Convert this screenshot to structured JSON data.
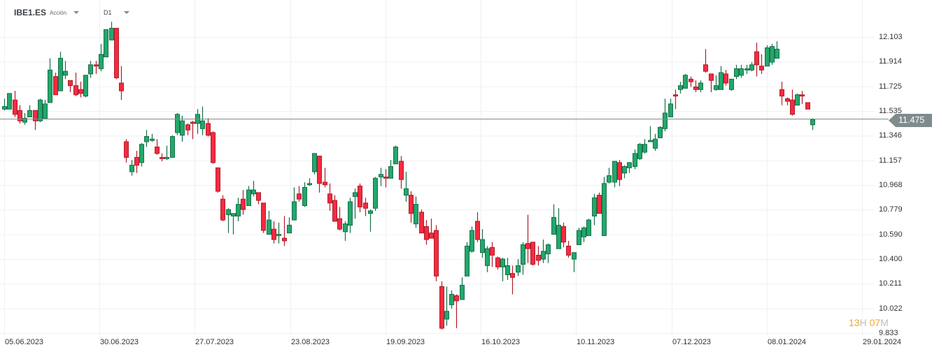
{
  "header": {
    "symbol": "IBE1.ES",
    "type": "Acción",
    "timeframe": "D1"
  },
  "timer": {
    "hours": "13",
    "h_unit": "H",
    "minutes": "07",
    "m_unit": "M"
  },
  "colors": {
    "up": "#22a86b",
    "up_border": "#16704a",
    "down": "#f42b40",
    "down_border": "#b01d2c",
    "price_line": "#7f8c8d",
    "timer": "#f5a623"
  },
  "chart_data": {
    "type": "candlestick",
    "title": "IBE1.ES",
    "current_price": "11.475",
    "current_price_value": 11.475,
    "ylim": [
      9.833,
      12.103
    ],
    "y_ticks": [
      "12.103",
      "11.914",
      "11.725",
      "11.535",
      "11.346",
      "11.157",
      "10.968",
      "10.779",
      "10.590",
      "10.400",
      "10.211",
      "10.022",
      "9.833"
    ],
    "x_ticks": [
      "05.06.2023",
      "30.06.2023",
      "27.07.2023",
      "23.08.2023",
      "19.09.2023",
      "16.10.2023",
      "10.11.2023",
      "07.12.2023",
      "08.01.2024",
      "29.01.2024"
    ],
    "x_tick_index": [
      0,
      19,
      38,
      57,
      76,
      95,
      114,
      133,
      152,
      171
    ],
    "grid": true,
    "ohlc": [
      [
        11.55,
        11.63,
        11.54,
        11.57
      ],
      [
        11.55,
        11.67,
        11.55,
        11.67
      ],
      [
        11.62,
        11.69,
        11.49,
        11.51
      ],
      [
        11.54,
        11.58,
        11.44,
        11.46
      ],
      [
        11.45,
        11.52,
        11.43,
        11.48
      ],
      [
        11.49,
        11.58,
        11.49,
        11.54
      ],
      [
        11.54,
        11.54,
        11.39,
        11.46
      ],
      [
        11.46,
        11.63,
        11.45,
        11.62
      ],
      [
        11.48,
        11.62,
        11.48,
        11.59
      ],
      [
        11.6,
        11.94,
        11.6,
        11.85
      ],
      [
        11.8,
        11.83,
        11.66,
        11.66
      ],
      [
        11.69,
        11.99,
        11.69,
        11.94
      ],
      [
        11.81,
        11.92,
        11.78,
        11.84
      ],
      [
        11.77,
        11.77,
        11.68,
        11.73
      ],
      [
        11.73,
        11.83,
        11.65,
        11.66
      ],
      [
        11.7,
        11.76,
        11.64,
        11.67
      ],
      [
        11.65,
        11.81,
        11.64,
        11.81
      ],
      [
        11.82,
        11.92,
        11.79,
        11.89
      ],
      [
        11.89,
        11.92,
        11.82,
        11.88
      ],
      [
        11.86,
        12.05,
        11.84,
        11.97
      ],
      [
        11.95,
        12.16,
        11.95,
        12.16
      ],
      [
        12.08,
        12.22,
        12.08,
        12.17
      ],
      [
        12.17,
        12.17,
        11.78,
        11.79
      ],
      [
        11.75,
        11.88,
        11.62,
        11.69
      ],
      [
        11.3,
        11.32,
        11.14,
        11.18
      ],
      [
        11.07,
        11.16,
        11.04,
        11.12
      ],
      [
        11.18,
        11.23,
        11.06,
        11.12
      ],
      [
        11.14,
        11.29,
        11.11,
        11.28
      ],
      [
        11.3,
        11.39,
        11.26,
        11.34
      ],
      [
        11.31,
        11.36,
        11.3,
        11.32
      ],
      [
        11.26,
        11.32,
        11.2,
        11.21
      ],
      [
        11.18,
        11.21,
        11.15,
        11.17
      ],
      [
        11.17,
        11.27,
        11.16,
        11.18
      ],
      [
        11.18,
        11.35,
        11.18,
        11.34
      ],
      [
        11.37,
        11.52,
        11.35,
        11.51
      ],
      [
        11.35,
        11.5,
        11.3,
        11.46
      ],
      [
        11.43,
        11.44,
        11.35,
        11.39
      ],
      [
        11.45,
        11.46,
        11.32,
        11.44
      ],
      [
        11.44,
        11.55,
        11.36,
        11.51
      ],
      [
        11.4,
        11.57,
        11.35,
        11.46
      ],
      [
        11.44,
        11.48,
        11.34,
        11.35
      ],
      [
        11.37,
        11.38,
        11.13,
        11.14
      ],
      [
        11.1,
        11.1,
        10.91,
        10.92
      ],
      [
        10.86,
        10.89,
        10.69,
        10.7
      ],
      [
        10.74,
        10.79,
        10.6,
        10.78
      ],
      [
        10.73,
        10.75,
        10.59,
        10.75
      ],
      [
        10.73,
        10.87,
        10.69,
        10.82
      ],
      [
        10.86,
        10.93,
        10.74,
        10.78
      ],
      [
        10.81,
        10.96,
        10.81,
        10.93
      ],
      [
        10.9,
        11.0,
        10.88,
        10.93
      ],
      [
        10.91,
        10.91,
        10.82,
        10.85
      ],
      [
        10.83,
        10.83,
        10.6,
        10.62
      ],
      [
        10.59,
        10.77,
        10.59,
        10.7
      ],
      [
        10.63,
        10.69,
        10.52,
        10.55
      ],
      [
        10.58,
        10.68,
        10.52,
        10.59
      ],
      [
        10.56,
        10.73,
        10.5,
        10.54
      ],
      [
        10.6,
        10.72,
        10.6,
        10.66
      ],
      [
        10.7,
        10.95,
        10.7,
        10.84
      ],
      [
        10.9,
        10.96,
        10.84,
        10.86
      ],
      [
        10.81,
        10.99,
        10.8,
        10.95
      ],
      [
        10.97,
        11.02,
        10.96,
        10.98
      ],
      [
        11.07,
        11.21,
        11.05,
        11.21
      ],
      [
        11.19,
        11.19,
        10.91,
        10.98
      ],
      [
        10.99,
        11.1,
        10.95,
        10.97
      ],
      [
        10.9,
        10.98,
        10.77,
        10.83
      ],
      [
        10.85,
        10.89,
        10.69,
        10.69
      ],
      [
        10.71,
        10.8,
        10.62,
        10.63
      ],
      [
        10.61,
        10.69,
        10.54,
        10.67
      ],
      [
        10.66,
        10.87,
        10.6,
        10.84
      ],
      [
        10.88,
        10.94,
        10.71,
        10.91
      ],
      [
        10.96,
        10.98,
        10.76,
        10.8
      ],
      [
        10.83,
        10.87,
        10.73,
        10.79
      ],
      [
        10.75,
        10.78,
        10.61,
        10.77
      ],
      [
        10.79,
        11.03,
        10.77,
        11.02
      ],
      [
        11.03,
        11.1,
        10.96,
        11.05
      ],
      [
        11.03,
        11.09,
        10.95,
        11.02
      ],
      [
        11.02,
        11.16,
        11.02,
        11.11
      ],
      [
        11.13,
        11.27,
        11.13,
        11.26
      ],
      [
        11.15,
        11.19,
        10.94,
        11.01
      ],
      [
        10.89,
        11.07,
        10.84,
        10.94
      ],
      [
        10.89,
        10.92,
        10.68,
        10.75
      ],
      [
        10.67,
        10.88,
        10.64,
        10.82
      ],
      [
        10.76,
        10.78,
        10.6,
        10.6
      ],
      [
        10.65,
        10.7,
        10.51,
        10.55
      ],
      [
        10.6,
        10.71,
        10.56,
        10.56
      ],
      [
        10.62,
        10.66,
        10.23,
        10.27
      ],
      [
        10.19,
        10.23,
        9.86,
        9.87
      ],
      [
        9.94,
        10.19,
        9.89,
        10.0
      ],
      [
        10.05,
        10.16,
        10.02,
        10.13
      ],
      [
        10.12,
        10.13,
        9.87,
        10.08
      ],
      [
        10.09,
        10.26,
        10.09,
        10.2
      ],
      [
        10.27,
        10.53,
        10.27,
        10.5
      ],
      [
        10.46,
        10.65,
        10.45,
        10.62
      ],
      [
        10.69,
        10.76,
        10.53,
        10.55
      ],
      [
        10.45,
        10.63,
        10.41,
        10.55
      ],
      [
        10.35,
        10.5,
        10.3,
        10.48
      ],
      [
        10.49,
        10.53,
        10.34,
        10.43
      ],
      [
        10.41,
        10.42,
        10.32,
        10.34
      ],
      [
        10.34,
        10.41,
        10.23,
        10.4
      ],
      [
        10.28,
        10.41,
        10.24,
        10.35
      ],
      [
        10.29,
        10.35,
        10.13,
        10.26
      ],
      [
        10.3,
        10.4,
        10.27,
        10.35
      ],
      [
        10.36,
        10.53,
        10.28,
        10.51
      ],
      [
        10.52,
        10.74,
        10.37,
        10.48
      ],
      [
        10.53,
        10.53,
        10.35,
        10.36
      ],
      [
        10.43,
        10.5,
        10.35,
        10.39
      ],
      [
        10.4,
        10.55,
        10.37,
        10.46
      ],
      [
        10.44,
        10.52,
        10.37,
        10.51
      ],
      [
        10.59,
        10.82,
        10.59,
        10.72
      ],
      [
        10.48,
        10.79,
        10.48,
        10.66
      ],
      [
        10.65,
        10.68,
        10.49,
        10.53
      ],
      [
        10.5,
        10.54,
        10.41,
        10.43
      ],
      [
        10.4,
        10.45,
        10.3,
        10.45
      ],
      [
        10.51,
        10.64,
        10.51,
        10.62
      ],
      [
        10.57,
        10.65,
        10.53,
        10.64
      ],
      [
        10.58,
        10.71,
        10.58,
        10.7
      ],
      [
        10.73,
        10.9,
        10.66,
        10.87
      ],
      [
        10.89,
        10.91,
        10.75,
        10.75
      ],
      [
        10.58,
        11.03,
        10.58,
        10.98
      ],
      [
        10.99,
        11.1,
        10.98,
        11.04
      ],
      [
        10.99,
        11.15,
        10.95,
        11.15
      ],
      [
        11.14,
        11.16,
        10.96,
        11.01
      ],
      [
        11.06,
        11.12,
        11.02,
        11.11
      ],
      [
        11.1,
        11.14,
        11.06,
        11.14
      ],
      [
        11.11,
        11.24,
        11.09,
        11.21
      ],
      [
        11.17,
        11.29,
        11.16,
        11.28
      ],
      [
        11.22,
        11.32,
        11.21,
        11.28
      ],
      [
        11.3,
        11.42,
        11.3,
        11.31
      ],
      [
        11.25,
        11.36,
        11.23,
        11.32
      ],
      [
        11.33,
        11.42,
        11.33,
        11.41
      ],
      [
        11.4,
        11.63,
        11.38,
        11.52
      ],
      [
        11.49,
        11.63,
        11.49,
        11.59
      ],
      [
        11.66,
        11.7,
        11.55,
        11.65
      ],
      [
        11.7,
        11.76,
        11.67,
        11.73
      ],
      [
        11.71,
        11.82,
        11.71,
        11.81
      ],
      [
        11.78,
        11.8,
        11.72,
        11.76
      ],
      [
        11.72,
        11.77,
        11.68,
        11.7
      ],
      [
        11.7,
        11.77,
        11.68,
        11.75
      ],
      [
        11.89,
        12.01,
        11.83,
        11.84
      ],
      [
        11.82,
        11.82,
        11.68,
        11.77
      ],
      [
        11.7,
        11.81,
        11.69,
        11.73
      ],
      [
        11.7,
        11.88,
        11.7,
        11.83
      ],
      [
        11.82,
        11.85,
        11.73,
        11.75
      ],
      [
        11.7,
        11.78,
        11.69,
        11.78
      ],
      [
        11.8,
        11.89,
        11.78,
        11.86
      ],
      [
        11.81,
        11.89,
        11.79,
        11.86
      ],
      [
        11.85,
        11.89,
        11.82,
        11.86
      ],
      [
        11.85,
        11.91,
        11.84,
        11.89
      ],
      [
        11.99,
        12.06,
        11.8,
        11.89
      ],
      [
        11.88,
        11.97,
        11.82,
        11.85
      ],
      [
        11.88,
        12.04,
        11.88,
        12.02
      ],
      [
        11.91,
        12.05,
        11.89,
        12.03
      ],
      [
        11.94,
        12.07,
        11.94,
        12.01
      ],
      [
        11.7,
        11.76,
        11.58,
        11.65
      ],
      [
        11.63,
        11.64,
        11.58,
        11.61
      ],
      [
        11.62,
        11.7,
        11.5,
        11.51
      ],
      [
        11.58,
        11.67,
        11.58,
        11.66
      ],
      [
        11.66,
        11.69,
        11.59,
        11.65
      ],
      [
        11.6,
        11.6,
        11.55,
        11.55
      ],
      [
        11.43,
        11.48,
        11.39,
        11.47
      ]
    ]
  }
}
